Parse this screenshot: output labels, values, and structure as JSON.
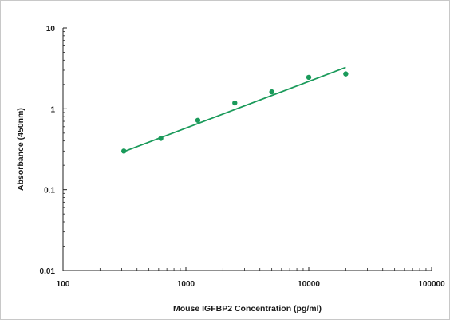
{
  "chart_data": {
    "type": "scatter",
    "title": "",
    "xlabel": "Mouse IGFBP2 Concentration (pg/ml)",
    "ylabel": "Absorbance (450nm)",
    "x_scale": "log",
    "y_scale": "log",
    "xlim": [
      100,
      100000
    ],
    "ylim": [
      0.01,
      10
    ],
    "x_tick_labels": [
      "100",
      "1000",
      "10000",
      "100000"
    ],
    "y_tick_labels": [
      "10",
      "1",
      "0.1",
      "0.01"
    ],
    "grid": false,
    "legend": "none",
    "series": [
      {
        "points": [
          {
            "x": 312.5,
            "y": 0.3
          },
          {
            "x": 625,
            "y": 0.43
          },
          {
            "x": 1250,
            "y": 0.72
          },
          {
            "x": 2500,
            "y": 1.18
          },
          {
            "x": 5000,
            "y": 1.62
          },
          {
            "x": 10000,
            "y": 2.45
          },
          {
            "x": 20000,
            "y": 2.7
          }
        ]
      }
    ],
    "fit_line": {
      "x": [
        312.5,
        20000
      ],
      "y": [
        0.295,
        3.25
      ]
    },
    "colors": {
      "points": "#1a9a5a",
      "fit": "#1a9a5a",
      "axis": "#222222"
    }
  }
}
